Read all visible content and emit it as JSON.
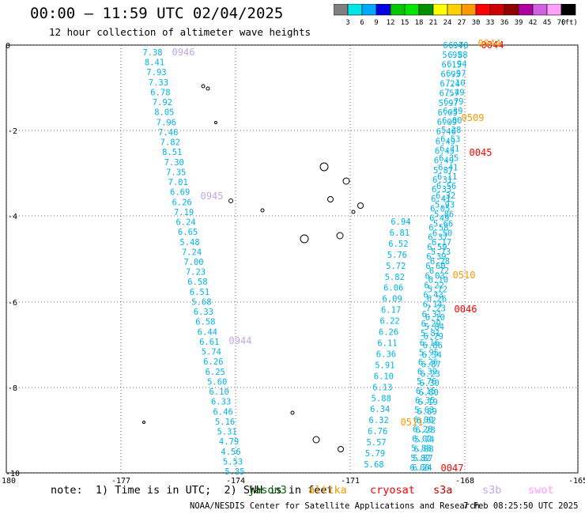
{
  "title": "00:00 – 11:59 UTC 02/04/2025",
  "subtitle": "12 hour collection of altimeter wave heights",
  "scale": {
    "ticks": [
      "3",
      "6",
      "9",
      "12",
      "15",
      "18",
      "21",
      "24",
      "27",
      "30",
      "33",
      "36",
      "39",
      "42",
      "45",
      "70",
      "(ft)"
    ],
    "colors": [
      "#808080",
      "#00e5e5",
      "#00a8ff",
      "#0000e0",
      "#00c800",
      "#00e600",
      "#009000",
      "#ffff00",
      "#ffd000",
      "#ff9900",
      "#ff0000",
      "#d00000",
      "#900000",
      "#b000a0",
      "#d060e0",
      "#ffa0ff",
      "#000000"
    ]
  },
  "axes": {
    "x_ticks": [
      "-180",
      "-177",
      "-174",
      "-171",
      "-168",
      "-165"
    ],
    "y_ticks": [
      "0",
      "-2",
      "-4",
      "-6",
      "-8",
      "-10"
    ]
  },
  "note": "note:  1) Time is in UTC;  2) SWH is in feet",
  "satellites": [
    {
      "name": "jason3",
      "color": "#006400"
    },
    {
      "name": "altika",
      "color": "#ff9900"
    },
    {
      "name": "cryosat",
      "color": "#ff0000"
    },
    {
      "name": "s3a",
      "color": "#c80000"
    },
    {
      "name": "s3b",
      "color": "#c0a8e8"
    },
    {
      "name": "swot",
      "color": "#ff99ff"
    }
  ],
  "credit": "NOAA/NESDIS Center for Satellite Applications and Research",
  "timestamp": "7 Feb 08:25:50 UTC 2025",
  "track_a": [
    "7.38",
    "8.41",
    "7.93",
    "7.33",
    "6.78",
    "7.92",
    "8.05",
    "7.96",
    "7.46",
    "7.82",
    "8.51",
    "7.30",
    "7.35",
    "7.01",
    "6.69",
    "6.26",
    "7.19",
    "6.24",
    "6.65",
    "5.48",
    "7.24",
    "7.00",
    "7.23",
    "6.58",
    "6.51",
    "5.68",
    "6.33",
    "6.58",
    "6.44",
    "6.61",
    "5.74",
    "6.26",
    "6.25",
    "5.60",
    "6.10",
    "6.33",
    "6.46",
    "5.16",
    "5.31",
    "4.79",
    "4.56",
    "5.53",
    "5.35"
  ],
  "track_b": [
    "6.94",
    "5.95",
    "6.15",
    "6.95",
    "6.24",
    "6.57",
    "5.97",
    "6.05",
    "6.09",
    "6.46",
    "6.49",
    "6.45",
    "6.49",
    "5.87",
    "6.31",
    "6.33",
    "6.41",
    "6.05",
    "6.49",
    "6.58",
    "6.37",
    "6.59",
    "6.39",
    "6.60",
    "6.03",
    "6.22",
    "6.43",
    "6.14",
    "6.31",
    "6.29",
    "5.81",
    "6.16",
    "5.95",
    "6.26",
    "6.39",
    "5.76",
    "6.15",
    "6.35",
    "5.63",
    "6.00",
    "6.20",
    "6.02",
    "5.88",
    "5.82",
    "6.00"
  ],
  "track_c": [
    "6.78",
    "6.88",
    "6.94",
    "6.97",
    "7.10",
    "7.49",
    "6.79",
    "6.39",
    "6.00",
    "5.28",
    "6.53",
    "6.31",
    "6.35",
    "6.41",
    "6.11",
    "6.56",
    "6.32",
    "5.93",
    "5.86",
    "5.66",
    "6.50",
    "6.17",
    "5.73",
    "6.28",
    "6.72",
    "6.10",
    "5.72",
    "6.26",
    "7.23",
    "6.10",
    "5.84",
    "6.79",
    "6.86",
    "6.34",
    "6.87",
    "6.23",
    "6.30",
    "6.80",
    "6.19",
    "6.89",
    "6.62",
    "6.28",
    "5.74",
    "6.08",
    "5.87",
    "6.24"
  ],
  "track_d": [
    "6.94",
    "6.81",
    "6.52",
    "5.76",
    "5.72",
    "5.82",
    "6.06",
    "6.09",
    "6.17",
    "6.22",
    "6.26",
    "6.11",
    "6.36",
    "5.91",
    "6.10",
    "6.13",
    "5.88",
    "6.34",
    "6.32",
    "6.76",
    "5.57",
    "5.79",
    "5.68"
  ],
  "time_labels": [
    {
      "text": "0946",
      "color": "#c0a8e8"
    },
    {
      "text": "0945",
      "color": "#c0a8e8"
    },
    {
      "text": "0944",
      "color": "#c0a8e8"
    },
    {
      "text": "0044",
      "color": "#ff0000"
    },
    {
      "text": "0044",
      "color": "#ff9900"
    },
    {
      "text": "0509",
      "color": "#ff9900"
    },
    {
      "text": "0045",
      "color": "#ff0000"
    },
    {
      "text": "0510",
      "color": "#ff9900"
    },
    {
      "text": "0046",
      "color": "#ff0000"
    },
    {
      "text": "0511",
      "color": "#ff9900"
    },
    {
      "text": "0047",
      "color": "#ff0000"
    }
  ]
}
